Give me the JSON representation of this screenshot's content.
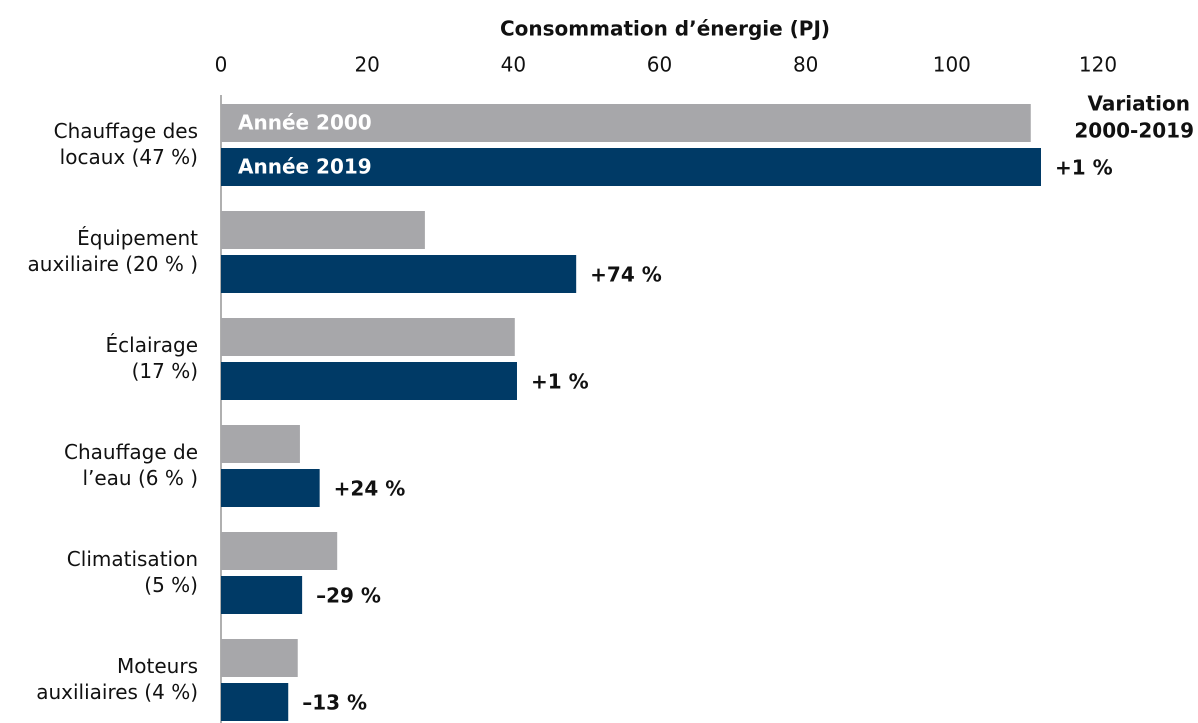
{
  "chart_data": {
    "type": "barh",
    "x_label": "Consommation d’énergie (PJ)",
    "categories": [
      "Chauffage des\nlocaux (47 %)",
      "Équipement\nauxiliaire (20 % )",
      "Éclairage\n(17 %)",
      "Chauffage de\nl’eau (6 % )",
      "Climatisation\n(5 %)",
      "Moteurs\nauxiliaires (4 %)"
    ],
    "series": [
      {
        "name": "Année 2000",
        "color": "#a7a7aa",
        "values": [
          110.8,
          27.9,
          40.2,
          10.8,
          15.9,
          10.5
        ]
      },
      {
        "name": "Année 2019",
        "color": "#003a66",
        "values": [
          112.2,
          48.6,
          40.5,
          13.5,
          11.1,
          9.2
        ]
      }
    ],
    "change_title": [
      "Variation",
      "2000-2019"
    ],
    "changes": [
      "+1 %",
      "+74 %",
      "+1 %",
      "+24 %",
      "–29 %",
      "–13 %"
    ],
    "xlim": [
      0,
      120
    ],
    "xticks": [
      0,
      20,
      40,
      60,
      80,
      100,
      120
    ]
  }
}
